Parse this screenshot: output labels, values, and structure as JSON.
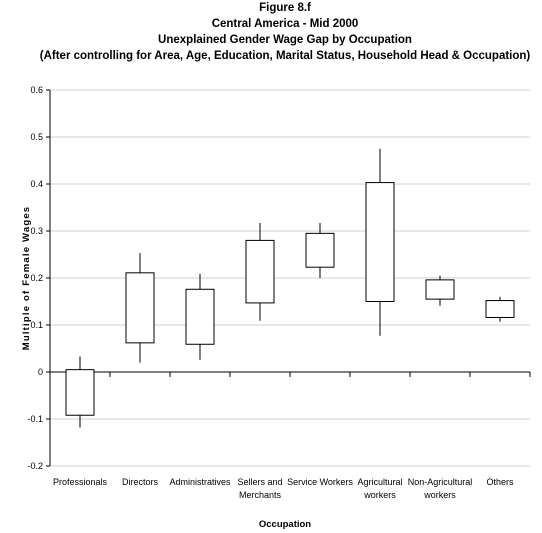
{
  "chart_data": {
    "type": "box",
    "title_lines": [
      "Figure 8.f",
      "Central America - Mid 2000",
      "Unexplained Gender Wage Gap by Occupation",
      "(After controlling for Area, Age, Education, Marital Status, Household Head & Occupation)"
    ],
    "xlabel": "Occupation",
    "ylabel": "Multiple of Female Wages",
    "ylim": [
      -0.2,
      0.6
    ],
    "yticks": [
      "0.6",
      "0.5",
      "0.4",
      "0.3",
      "0.2",
      "0.1",
      "0",
      "-0.1",
      "-0.2"
    ],
    "ytick_values": [
      0.6,
      0.5,
      0.4,
      0.3,
      0.2,
      0.1,
      0,
      -0.1,
      -0.2
    ],
    "grid": true,
    "categories": [
      [
        "Professionals"
      ],
      [
        "Directors"
      ],
      [
        "Administratives"
      ],
      [
        "Sellers and",
        "Merchants"
      ],
      [
        "Service Workers"
      ],
      [
        "Agricultural",
        "workers"
      ],
      [
        "Non-Agricultural",
        "workers"
      ],
      [
        "Others"
      ]
    ],
    "series": [
      {
        "min": -0.118,
        "q1": -0.092,
        "q3": 0.005,
        "max": 0.033
      },
      {
        "min": 0.02,
        "q1": 0.062,
        "q3": 0.211,
        "max": 0.253
      },
      {
        "min": 0.026,
        "q1": 0.059,
        "q3": 0.176,
        "max": 0.209
      },
      {
        "min": 0.109,
        "q1": 0.147,
        "q3": 0.28,
        "max": 0.317
      },
      {
        "min": 0.2,
        "q1": 0.223,
        "q3": 0.295,
        "max": 0.317
      },
      {
        "min": 0.077,
        "q1": 0.15,
        "q3": 0.403,
        "max": 0.475
      },
      {
        "min": 0.141,
        "q1": 0.155,
        "q3": 0.196,
        "max": 0.205
      },
      {
        "min": 0.107,
        "q1": 0.116,
        "q3": 0.152,
        "max": 0.16
      }
    ],
    "colors": {
      "box_fill": "#ffffff",
      "stroke": "#000000",
      "grid": "#c0c0c0"
    }
  }
}
